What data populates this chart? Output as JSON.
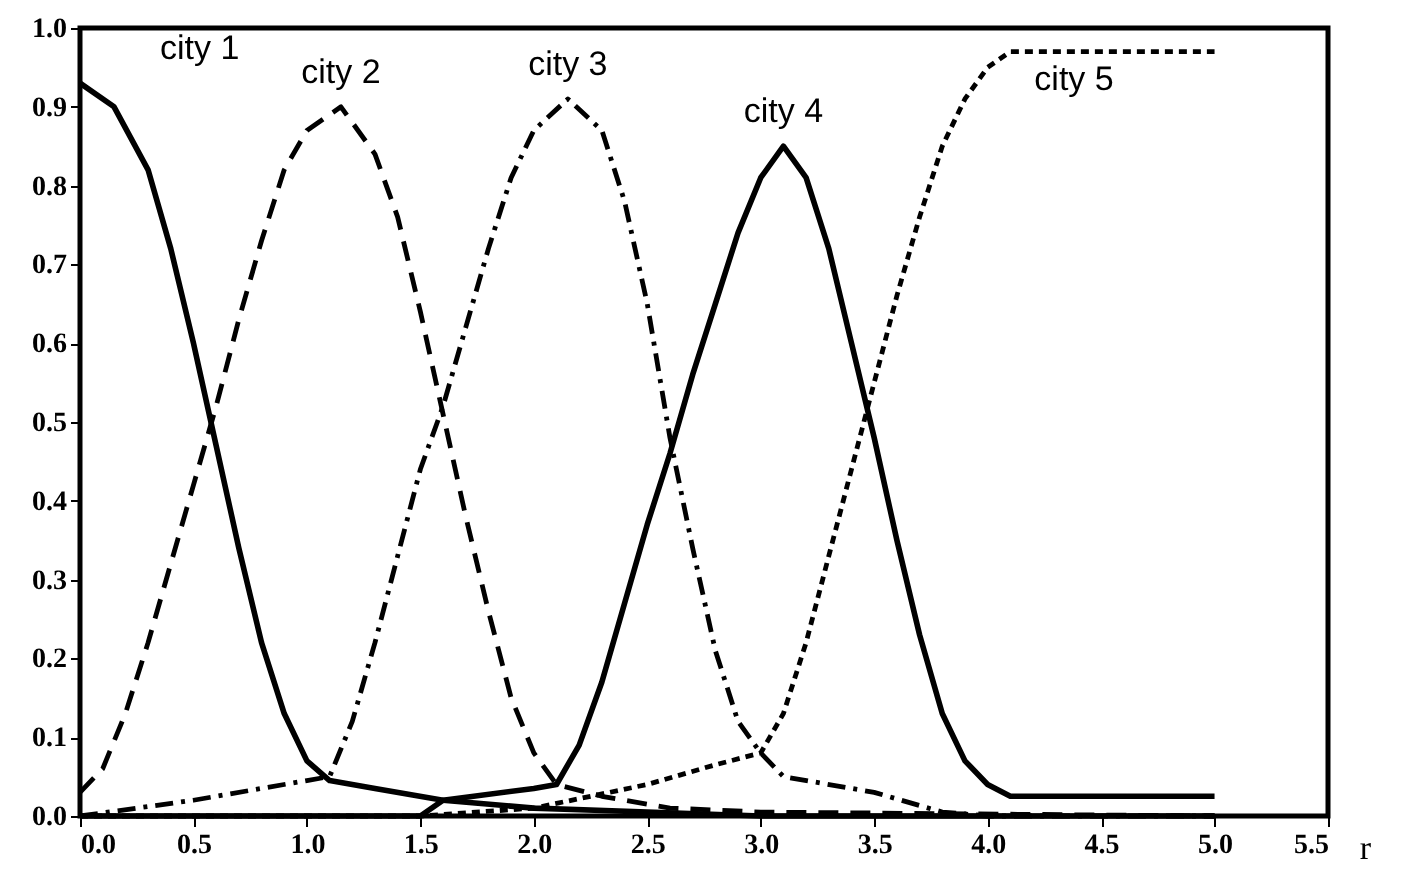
{
  "chart_data": {
    "type": "line",
    "xlabel": "r",
    "xlim": [
      0,
      5.5
    ],
    "ylim": [
      0,
      1
    ],
    "xticks": [
      {
        "value": 0,
        "label": "0.0"
      },
      0.5,
      {
        "value": 1,
        "label": "1.0"
      },
      1.5,
      {
        "value": 2,
        "label": "2.0"
      },
      2.5,
      {
        "value": 3,
        "label": "3.0"
      },
      3.5,
      {
        "value": 4,
        "label": "4.0"
      },
      4.5,
      {
        "value": 5,
        "label": "5.0"
      },
      5.5
    ],
    "yticks": [
      {
        "value": 0,
        "label": "0.0"
      },
      0.1,
      0.2,
      0.3,
      0.4,
      0.5,
      0.6,
      0.7,
      0.8,
      0.9,
      {
        "value": 1,
        "label": "1.0"
      }
    ],
    "grid": false,
    "marker": "none",
    "series": [
      {
        "name": "city 1",
        "color": "#000000",
        "line_style": "solid",
        "x": [
          0,
          0.15,
          0.3,
          0.4,
          0.5,
          0.6,
          0.7,
          0.8,
          0.9,
          1.0,
          1.1,
          1.3,
          1.6,
          2.0,
          2.5,
          3.0,
          5.0
        ],
        "values": [
          0.93,
          0.9,
          0.82,
          0.72,
          0.6,
          0.47,
          0.34,
          0.22,
          0.13,
          0.07,
          0.045,
          0.035,
          0.02,
          0.01,
          0.005,
          0,
          0
        ]
      },
      {
        "name": "city 2",
        "color": "#000000",
        "line_style": "dashed",
        "x": [
          0,
          0.1,
          0.2,
          0.3,
          0.4,
          0.5,
          0.6,
          0.7,
          0.8,
          0.9,
          1.0,
          1.15,
          1.3,
          1.4,
          1.5,
          1.6,
          1.7,
          1.8,
          1.9,
          2.0,
          2.1,
          2.3,
          2.6,
          3.0,
          5.0
        ],
        "values": [
          0.03,
          0.06,
          0.13,
          0.22,
          0.32,
          0.42,
          0.52,
          0.63,
          0.73,
          0.82,
          0.87,
          0.9,
          0.84,
          0.76,
          0.64,
          0.51,
          0.38,
          0.26,
          0.15,
          0.08,
          0.04,
          0.025,
          0.01,
          0.005,
          0
        ]
      },
      {
        "name": "city 3",
        "color": "#000000",
        "line_style": "dashdot",
        "x": [
          0,
          0.5,
          1.0,
          1.1,
          1.2,
          1.3,
          1.4,
          1.5,
          1.6,
          1.7,
          1.8,
          1.9,
          2.0,
          2.15,
          2.3,
          2.4,
          2.5,
          2.6,
          2.7,
          2.8,
          2.9,
          3.0,
          3.1,
          3.5,
          3.8,
          4.0,
          5.0
        ],
        "values": [
          0,
          0.02,
          0.045,
          0.05,
          0.12,
          0.22,
          0.33,
          0.44,
          0.52,
          0.62,
          0.72,
          0.81,
          0.87,
          0.91,
          0.87,
          0.78,
          0.65,
          0.48,
          0.34,
          0.21,
          0.12,
          0.08,
          0.05,
          0.03,
          0.005,
          0,
          0
        ]
      },
      {
        "name": "city 4",
        "color": "#000000",
        "line_style": "solid",
        "x": [
          0,
          1.5,
          1.6,
          2.0,
          2.1,
          2.2,
          2.3,
          2.4,
          2.5,
          2.6,
          2.7,
          2.8,
          2.9,
          3.0,
          3.1,
          3.2,
          3.3,
          3.4,
          3.5,
          3.6,
          3.7,
          3.8,
          3.9,
          4.0,
          4.1,
          5.0
        ],
        "values": [
          0,
          0,
          0.02,
          0.035,
          0.04,
          0.09,
          0.17,
          0.27,
          0.37,
          0.46,
          0.56,
          0.65,
          0.74,
          0.81,
          0.85,
          0.81,
          0.72,
          0.6,
          0.48,
          0.35,
          0.23,
          0.13,
          0.07,
          0.04,
          0.025,
          0.025
        ]
      },
      {
        "name": "city 5",
        "color": "#000000",
        "line_style": "dotted",
        "x": [
          0,
          1.5,
          2.0,
          2.5,
          2.8,
          3.0,
          3.1,
          3.2,
          3.3,
          3.4,
          3.5,
          3.6,
          3.7,
          3.8,
          3.9,
          4.0,
          4.1,
          5.0
        ],
        "values": [
          0,
          0,
          0.01,
          0.04,
          0.065,
          0.08,
          0.13,
          0.22,
          0.33,
          0.44,
          0.55,
          0.66,
          0.76,
          0.85,
          0.91,
          0.95,
          0.97,
          0.97
        ]
      }
    ]
  }
}
